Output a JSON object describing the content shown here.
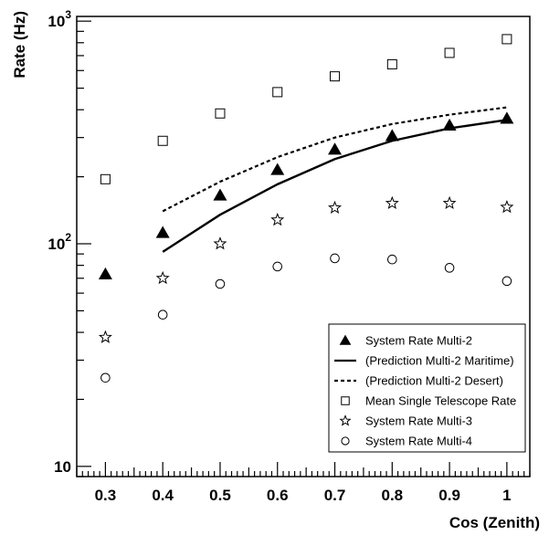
{
  "chart_data": {
    "type": "scatter",
    "xlabel": "Cos (Zenith)",
    "ylabel": "Rate (Hz)",
    "xlim": [
      0.25,
      1.04
    ],
    "ylim": [
      9,
      1050
    ],
    "y_scale": "log",
    "grid": false,
    "legend_position": "bottom-right",
    "x_ticks": [
      {
        "value": 0.3,
        "label": "0.3"
      },
      {
        "value": 0.4,
        "label": "0.4"
      },
      {
        "value": 0.5,
        "label": "0.5"
      },
      {
        "value": 0.6,
        "label": "0.6"
      },
      {
        "value": 0.7,
        "label": "0.7"
      },
      {
        "value": 0.8,
        "label": "0.8"
      },
      {
        "value": 0.9,
        "label": "0.9"
      },
      {
        "value": 1.0,
        "label": "1"
      }
    ],
    "y_ticks": [
      {
        "value": 10,
        "base": "10",
        "exp": ""
      },
      {
        "value": 100,
        "base": "10",
        "exp": "2"
      },
      {
        "value": 1000,
        "base": "10",
        "exp": "3"
      }
    ],
    "series": [
      {
        "name": "System Rate Multi-2",
        "marker": "filled-triangle",
        "x": [
          0.3,
          0.4,
          0.5,
          0.6,
          0.7,
          0.8,
          0.9,
          1.0
        ],
        "y": [
          73,
          112,
          165,
          215,
          265,
          305,
          340,
          365
        ]
      },
      {
        "name": "(Prediction Multi-2 Maritime)",
        "marker": "solid-line",
        "x": [
          0.4,
          0.5,
          0.6,
          0.7,
          0.8,
          0.9,
          1.0
        ],
        "y": [
          92,
          135,
          185,
          240,
          290,
          330,
          360
        ]
      },
      {
        "name": "(Prediction Multi-2 Desert)",
        "marker": "dashed-line",
        "x": [
          0.4,
          0.5,
          0.6,
          0.7,
          0.8,
          0.9,
          1.0
        ],
        "y": [
          140,
          190,
          245,
          300,
          345,
          380,
          410
        ]
      },
      {
        "name": "Mean Single Telescope Rate",
        "marker": "open-square",
        "x": [
          0.3,
          0.4,
          0.5,
          0.6,
          0.7,
          0.8,
          0.9,
          1.0
        ],
        "y": [
          195,
          290,
          385,
          480,
          565,
          640,
          720,
          830
        ]
      },
      {
        "name": "System Rate Multi-3",
        "marker": "open-star",
        "x": [
          0.3,
          0.4,
          0.5,
          0.6,
          0.7,
          0.8,
          0.9,
          1.0
        ],
        "y": [
          38,
          70,
          100,
          128,
          145,
          152,
          152,
          146
        ]
      },
      {
        "name": "System Rate Multi-4",
        "marker": "open-circle",
        "x": [
          0.3,
          0.4,
          0.5,
          0.6,
          0.7,
          0.8,
          0.9,
          1.0
        ],
        "y": [
          25,
          48,
          66,
          79,
          86,
          85,
          78,
          68
        ]
      }
    ]
  }
}
